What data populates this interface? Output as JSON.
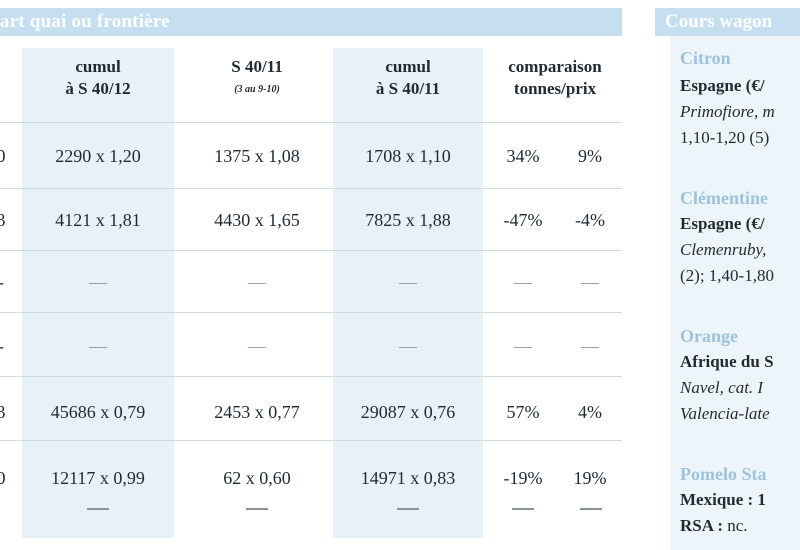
{
  "section_title": "art quai ou frontière",
  "columns": [
    {
      "label_line1": "cumul",
      "label_line2": "à S 40/12"
    },
    {
      "label_line1": "S 40/11",
      "label_line2": "",
      "sub": "(3 au 9-10)"
    },
    {
      "label_line1": "cumul",
      "label_line2": "à S 40/11"
    },
    {
      "label_line1": "comparaison",
      "label_line2": "tonnes/prix"
    }
  ],
  "row_edges": [
    "0",
    "3",
    "-",
    "-",
    "3",
    "0"
  ],
  "rows": [
    {
      "c1": "2290 x 1,20",
      "c2": "1375 x 1,08",
      "c3": "1708 x 1,10",
      "t": "34%",
      "p": "9%"
    },
    {
      "c1": "4121 x 1,81",
      "c2": "4430 x 1,65",
      "c3": "7825 x 1,88",
      "t": "-47%",
      "p": "-4%"
    },
    {
      "c1": "—",
      "c2": "—",
      "c3": "—",
      "t": "—",
      "p": "—"
    },
    {
      "c1": "—",
      "c2": "—",
      "c3": "—",
      "t": "—",
      "p": "—"
    },
    {
      "c1": "45686 x 0,79",
      "c2": "2453 x 0,77",
      "c3": "29087 x 0,76",
      "t": "57%",
      "p": "4%"
    },
    {
      "c1": "12117 x 0,99",
      "c2": "62 x 0,60",
      "c3": "14971 x 0,83",
      "t": "-19%",
      "p": "19%"
    }
  ],
  "sidebar": {
    "title": "Cours wagon",
    "citron": {
      "head": "Citron",
      "l1": "Espagne (€/",
      "l2": "Primofiore, m",
      "l3": "1,10-1,20 (5)"
    },
    "clementine": {
      "head": "Clémentine",
      "l1": "Espagne (€/",
      "l2": "Clemenruby,",
      "l3": "(2); 1,40-1,80"
    },
    "orange": {
      "head": "Orange",
      "l1": "Afrique du S",
      "l2": "Navel, cat. I",
      "l3": "Valencia-late"
    },
    "pomelo": {
      "head": "Pomelo Sta",
      "l1": "Mexique : 1",
      "l2_bold": "RSA :",
      "l2_rest": " nc."
    }
  }
}
